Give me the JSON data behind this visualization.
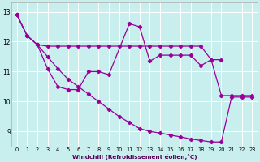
{
  "xlabel": "Windchill (Refroidissement éolien,°C)",
  "bg_color": "#c8eeee",
  "grid_color": "#ffffff",
  "line_color": "#990099",
  "xlim_min": -0.5,
  "xlim_max": 23.5,
  "ylim_min": 8.5,
  "ylim_max": 13.3,
  "yticks": [
    9,
    10,
    11,
    12,
    13
  ],
  "xticks": [
    0,
    1,
    2,
    3,
    4,
    5,
    6,
    7,
    8,
    9,
    10,
    11,
    12,
    13,
    14,
    15,
    16,
    17,
    18,
    19,
    20,
    21,
    22,
    23
  ],
  "s1_x": [
    0,
    1,
    2,
    3,
    4,
    5,
    6,
    7,
    8,
    9,
    10,
    11,
    12,
    13,
    14,
    15,
    16,
    17,
    18,
    19,
    20
  ],
  "s1_y": [
    12.9,
    12.2,
    11.9,
    11.85,
    11.85,
    11.85,
    11.85,
    11.85,
    11.85,
    11.85,
    11.85,
    11.85,
    11.85,
    11.85,
    11.85,
    11.85,
    11.85,
    11.85,
    11.85,
    11.4,
    11.4
  ],
  "s2_x": [
    0,
    1,
    2,
    3,
    4,
    5,
    6,
    7,
    8,
    9,
    11,
    12,
    13,
    14,
    15,
    16,
    17,
    18,
    19,
    20,
    21,
    22,
    23
  ],
  "s2_y": [
    12.9,
    12.2,
    11.9,
    11.1,
    10.5,
    10.4,
    10.4,
    11.0,
    11.0,
    10.9,
    12.6,
    12.5,
    11.35,
    11.55,
    11.55,
    11.55,
    11.55,
    11.2,
    11.4,
    10.2,
    10.2,
    10.2,
    10.2
  ],
  "s3_x": [
    0,
    1,
    2,
    3,
    4,
    5,
    6,
    7,
    8,
    9,
    10,
    11,
    12,
    13,
    14,
    15,
    16,
    17,
    18,
    19,
    20,
    21,
    22,
    23
  ],
  "s3_y": [
    12.9,
    12.2,
    11.9,
    11.5,
    11.1,
    10.75,
    10.5,
    10.25,
    10.0,
    9.75,
    9.5,
    9.3,
    9.1,
    9.0,
    8.95,
    8.88,
    8.82,
    8.75,
    8.7,
    8.65,
    8.65,
    10.15,
    10.15,
    10.15
  ]
}
